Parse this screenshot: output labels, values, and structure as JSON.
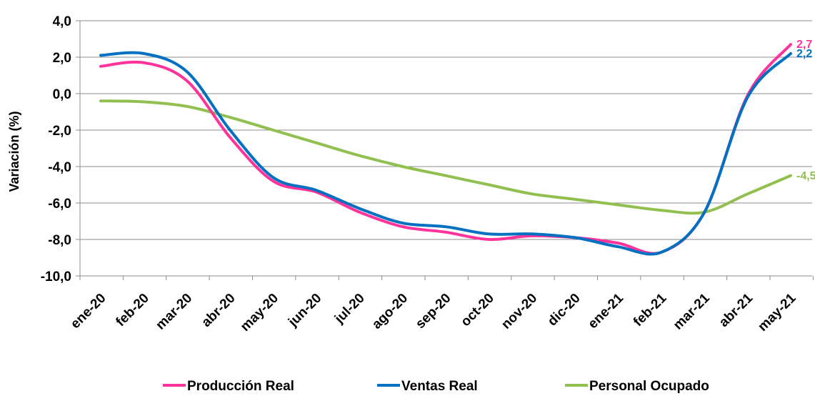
{
  "chart_data": {
    "type": "line",
    "ylabel": "Variación (%)",
    "xlabel": "",
    "ylim": [
      -10,
      4
    ],
    "yticks": [
      "4,0",
      "2,0",
      "0,0",
      "-2,0",
      "-4,0",
      "-6,0",
      "-8,0",
      "-10,0"
    ],
    "categories": [
      "ene-20",
      "feb-20",
      "mar-20",
      "abr-20",
      "may-20",
      "jun-20",
      "jul-20",
      "ago-20",
      "sep-20",
      "oct-20",
      "nov-20",
      "dic-20",
      "ene-21",
      "feb-21",
      "mar-21",
      "abr-21",
      "may-21"
    ],
    "grid": true,
    "legend": "bottom",
    "series": [
      {
        "name": "Producción Real",
        "color": "#ff3399",
        "values": [
          1.5,
          1.7,
          0.7,
          -2.4,
          -4.8,
          -5.4,
          -6.5,
          -7.3,
          -7.6,
          -8.0,
          -7.8,
          -7.9,
          -8.2,
          -8.7,
          -6.5,
          -0.1,
          2.7
        ],
        "end_label": "2,7"
      },
      {
        "name": "Ventas Real",
        "color": "#0070c0",
        "values": [
          2.1,
          2.2,
          1.2,
          -2.0,
          -4.6,
          -5.3,
          -6.3,
          -7.1,
          -7.3,
          -7.7,
          -7.7,
          -7.9,
          -8.4,
          -8.7,
          -6.5,
          -0.2,
          2.2
        ],
        "end_label": "2,2"
      },
      {
        "name": "Personal Ocupado",
        "color": "#92c050",
        "values": [
          -0.4,
          -0.45,
          -0.7,
          -1.3,
          -2.0,
          -2.7,
          -3.4,
          -4.0,
          -4.5,
          -5.0,
          -5.5,
          -5.8,
          -6.1,
          -6.4,
          -6.5,
          -5.5,
          -4.5
        ],
        "end_label": "-4,5"
      }
    ]
  }
}
